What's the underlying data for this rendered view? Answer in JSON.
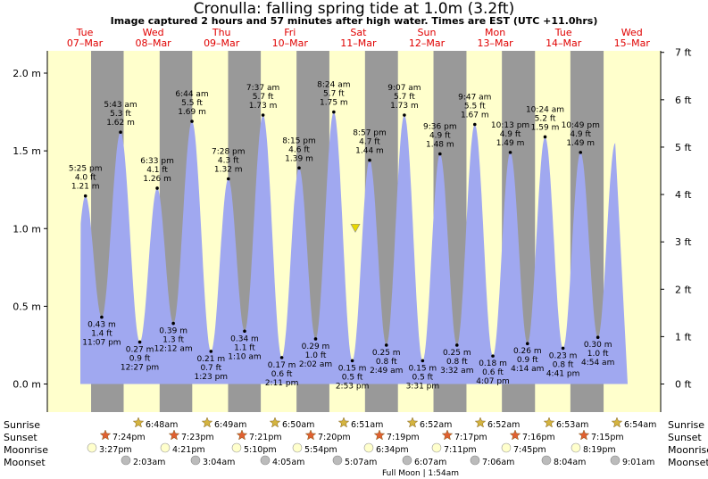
{
  "header": {
    "title": "Cronulla: falling  spring tide at 1.0m (3.2ft)",
    "subtitle": "Image captured 2 hours and 57 minutes after high water. Times are EST (UTC +11.0hrs)"
  },
  "colors": {
    "day_bg": "#ffffcc",
    "night_bg": "#999999",
    "water": "#a0a8f0",
    "day_label": "#e00000",
    "sun_star": "#d4b440",
    "sunset_star": "#e06030",
    "moon_circle": "#ffffcc",
    "moonset_circle": "#bbbbbb",
    "marker": "#e8d800"
  },
  "chart_data": {
    "type": "area",
    "ylabel_left": "m",
    "ylabel_right": "ft",
    "ylim": [
      -0.06,
      2.1
    ],
    "yticks_m": [
      "0.0 m",
      "0.5 m",
      "1.0 m",
      "1.5 m",
      "2.0 m"
    ],
    "yticks_ft": [
      "0 ft",
      "1 ft",
      "2 ft",
      "3 ft",
      "4 ft",
      "5 ft",
      "6 ft",
      "7 ft"
    ],
    "days": [
      {
        "name": "Tue",
        "date": "07–Mar"
      },
      {
        "name": "Wed",
        "date": "08–Mar"
      },
      {
        "name": "Thu",
        "date": "09–Mar"
      },
      {
        "name": "Fri",
        "date": "10–Mar"
      },
      {
        "name": "Sat",
        "date": "11–Mar"
      },
      {
        "name": "Sun",
        "date": "12–Mar"
      },
      {
        "name": "Mon",
        "date": "13–Mar"
      },
      {
        "name": "Tue",
        "date": "14–Mar"
      },
      {
        "name": "Wed",
        "date": "15–Mar"
      }
    ],
    "tides": [
      {
        "type": "high",
        "time": "5:25 pm",
        "ft": "4.0 ft",
        "m": "1.21 m",
        "value": 1.21
      },
      {
        "type": "low",
        "time": "11:07 pm",
        "ft": "1.4 ft",
        "m": "0.43 m",
        "value": 0.43
      },
      {
        "type": "high",
        "time": "5:43 am",
        "ft": "5.3 ft",
        "m": "1.62 m",
        "value": 1.62
      },
      {
        "type": "low",
        "time": "12:27 pm",
        "ft": "0.9 ft",
        "m": "0.27 m",
        "value": 0.27
      },
      {
        "type": "high",
        "time": "6:33 pm",
        "ft": "4.1 ft",
        "m": "1.26 m",
        "value": 1.26
      },
      {
        "type": "low",
        "time": "12:12 am",
        "ft": "1.3 ft",
        "m": "0.39 m",
        "value": 0.39
      },
      {
        "type": "high",
        "time": "6:44 am",
        "ft": "5.5 ft",
        "m": "1.69 m",
        "value": 1.69
      },
      {
        "type": "low",
        "time": "1:23 pm",
        "ft": "0.7 ft",
        "m": "0.21 m",
        "value": 0.21
      },
      {
        "type": "high",
        "time": "7:28 pm",
        "ft": "4.3 ft",
        "m": "1.32 m",
        "value": 1.32
      },
      {
        "type": "low",
        "time": "1:10 am",
        "ft": "1.1 ft",
        "m": "0.34 m",
        "value": 0.34
      },
      {
        "type": "high",
        "time": "7:37 am",
        "ft": "5.7 ft",
        "m": "1.73 m",
        "value": 1.73
      },
      {
        "type": "low",
        "time": "2:11 pm",
        "ft": "0.6 ft",
        "m": "0.17 m",
        "value": 0.17
      },
      {
        "type": "high",
        "time": "8:15 pm",
        "ft": "4.6 ft",
        "m": "1.39 m",
        "value": 1.39
      },
      {
        "type": "low",
        "time": "2:02 am",
        "ft": "1.0 ft",
        "m": "0.29 m",
        "value": 0.29
      },
      {
        "type": "high",
        "time": "8:24 am",
        "ft": "5.7 ft",
        "m": "1.75 m",
        "value": 1.75
      },
      {
        "type": "low",
        "time": "2:53 pm",
        "ft": "0.5 ft",
        "m": "0.15 m",
        "value": 0.15
      },
      {
        "type": "high",
        "time": "8:57 pm",
        "ft": "4.7 ft",
        "m": "1.44 m",
        "value": 1.44
      },
      {
        "type": "low",
        "time": "2:49 am",
        "ft": "0.8 ft",
        "m": "0.25 m",
        "value": 0.25
      },
      {
        "type": "high",
        "time": "9:07 am",
        "ft": "5.7 ft",
        "m": "1.73 m",
        "value": 1.73
      },
      {
        "type": "low",
        "time": "3:31 pm",
        "ft": "0.5 ft",
        "m": "0.15 m",
        "value": 0.15
      },
      {
        "type": "high",
        "time": "9:36 pm",
        "ft": "4.9 ft",
        "m": "1.48 m",
        "value": 1.48
      },
      {
        "type": "low",
        "time": "3:32 am",
        "ft": "0.8 ft",
        "m": "0.25 m",
        "value": 0.25
      },
      {
        "type": "high",
        "time": "9:47 am",
        "ft": "5.5 ft",
        "m": "1.67 m",
        "value": 1.67
      },
      {
        "type": "low",
        "time": "4:07 pm",
        "ft": "0.6 ft",
        "m": "0.18 m",
        "value": 0.18
      },
      {
        "type": "high",
        "time": "10:13 pm",
        "ft": "4.9 ft",
        "m": "1.49 m",
        "value": 1.49
      },
      {
        "type": "low",
        "time": "4:14 am",
        "ft": "0.9 ft",
        "m": "0.26 m",
        "value": 0.26
      },
      {
        "type": "high",
        "time": "10:24 am",
        "ft": "5.2 ft",
        "m": "1.59 m",
        "value": 1.59
      },
      {
        "type": "low",
        "time": "4:41 pm",
        "ft": "0.8 ft",
        "m": "0.23 m",
        "value": 0.23
      },
      {
        "type": "high",
        "time": "10:49 pm",
        "ft": "4.9 ft",
        "m": "1.49 m",
        "value": 1.49
      },
      {
        "type": "low",
        "time": "4:54 am",
        "ft": "1.0 ft",
        "m": "0.30 m",
        "value": 0.3
      }
    ],
    "current_level_m": 1.0
  },
  "astro": {
    "row_labels": {
      "sunrise": "Sunrise",
      "sunset": "Sunset",
      "moonrise": "Moonrise",
      "moonset": "Moonset"
    },
    "sunrise": [
      "6:48am",
      "6:49am",
      "6:50am",
      "6:51am",
      "6:52am",
      "6:52am",
      "6:53am",
      "6:54am"
    ],
    "sunset": [
      "7:24pm",
      "7:23pm",
      "7:21pm",
      "7:20pm",
      "7:19pm",
      "7:17pm",
      "7:16pm",
      "7:15pm"
    ],
    "moonrise": [
      "3:27pm",
      "4:21pm",
      "5:10pm",
      "5:54pm",
      "6:34pm",
      "7:11pm",
      "7:45pm",
      "8:19pm"
    ],
    "moonset": [
      "2:03am",
      "3:04am",
      "4:05am",
      "5:07am",
      "6:07am",
      "7:06am",
      "8:04am",
      "9:01am"
    ],
    "full_moon": "Full Moon | 1:54am"
  }
}
